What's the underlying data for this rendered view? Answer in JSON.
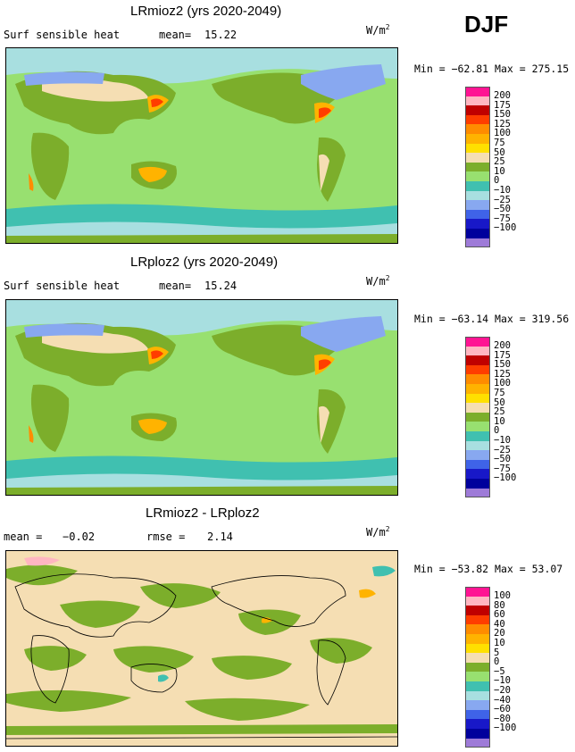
{
  "season": "DJF",
  "panels": [
    {
      "title": "LRmioz2 (yrs 2020-2049)",
      "left_label": "Surf sensible heat",
      "stat_label": "mean=",
      "stat_value": "15.22",
      "unit_base": "W/m",
      "unit_exp": "2",
      "min_label": "Min =",
      "min_value": "−62.81",
      "max_label": "Max =",
      "max_value": "275.15",
      "levels": [
        "200",
        "175",
        "150",
        "125",
        "100",
        "75",
        "50",
        "25",
        "10",
        "0",
        "−10",
        "−25",
        "−50",
        "−75",
        "−100"
      ]
    },
    {
      "title": "LRploz2 (yrs 2020-2049)",
      "left_label": "Surf sensible heat",
      "stat_label": "mean=",
      "stat_value": "15.24",
      "unit_base": "W/m",
      "unit_exp": "2",
      "min_label": "Min =",
      "min_value": "−63.14",
      "max_label": "Max =",
      "max_value": "319.56",
      "levels": [
        "200",
        "175",
        "150",
        "125",
        "100",
        "75",
        "50",
        "25",
        "10",
        "0",
        "−10",
        "−25",
        "−50",
        "−75",
        "−100"
      ]
    },
    {
      "title": "LRmioz2 - LRploz2",
      "left_label": "mean =",
      "left_value": "−0.02",
      "stat_label": "rmse =",
      "stat_value": "2.14",
      "unit_base": "W/m",
      "unit_exp": "2",
      "min_label": "Min =",
      "min_value": "−53.82",
      "max_label": "Max =",
      "max_value": "53.07",
      "levels": [
        "100",
        "80",
        "60",
        "40",
        "20",
        "10",
        "5",
        "0",
        "−5",
        "−10",
        "−20",
        "−40",
        "−60",
        "−80",
        "−100"
      ]
    }
  ],
  "colors": {
    "palette": [
      "#ff1493",
      "#ffb6c1",
      "#c00000",
      "#ff3d00",
      "#ff8c00",
      "#ffb300",
      "#ffe000",
      "#f5deb3",
      "#7cae2b",
      "#98e070",
      "#40c0b0",
      "#a8dfe0",
      "#88a8f0",
      "#3f63e8",
      "#1818c8",
      "#00009c",
      "#9e7bd8"
    ],
    "ocean_base": "#98e070",
    "land_base": "#7cae2b"
  }
}
